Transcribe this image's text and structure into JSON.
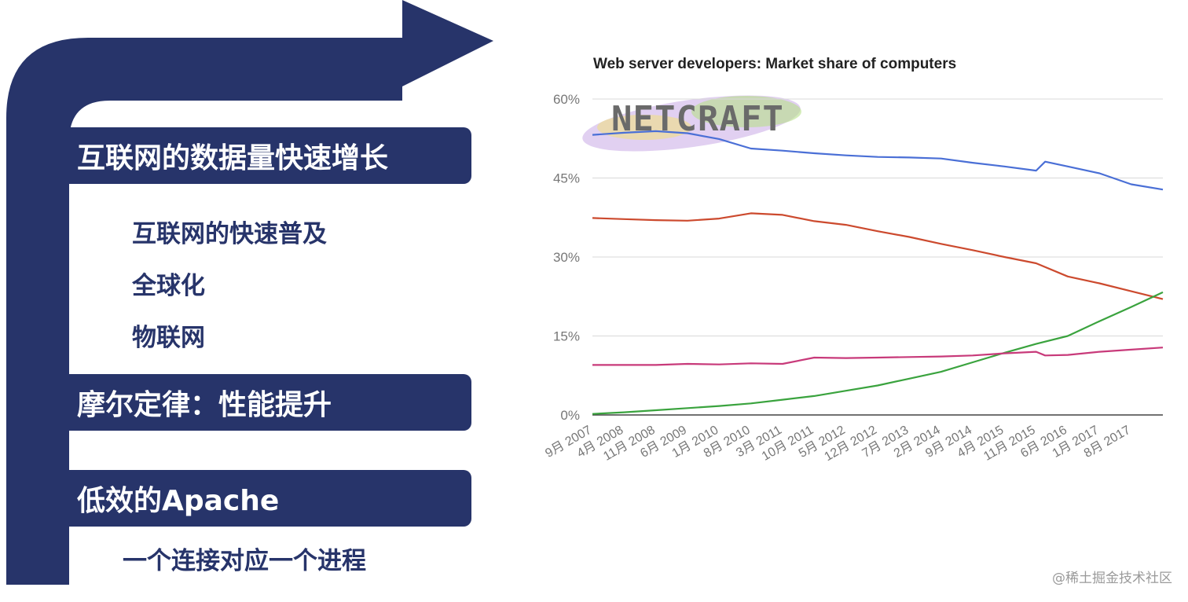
{
  "left_panel": {
    "section1": {
      "title": "互联网的数据量快速增长",
      "items": [
        "互联网的快速普及",
        "全球化",
        "物联网"
      ]
    },
    "section2": {
      "title": "摩尔定律：性能提升"
    },
    "section3": {
      "title": "低效的Apache",
      "items": [
        "一个连接对应一个进程"
      ]
    },
    "color": "#27346a"
  },
  "logo_text": "NETCRAFT",
  "watermark": "@稀土掘金技术社区",
  "chart_data": {
    "type": "line",
    "title": "Web server developers: Market share of computers",
    "xlabel": "",
    "ylabel": "",
    "ylim": [
      0,
      60
    ],
    "yticks": [
      "0%",
      "15%",
      "30%",
      "45%",
      "60%"
    ],
    "grid": true,
    "legend": "none",
    "x_tick_labels": [
      "9月 2007",
      "4月 2008",
      "11月 2008",
      "6月 2009",
      "1月 2010",
      "8月 2010",
      "3月 2011",
      "10月 2011",
      "5月 2012",
      "12月 2012",
      "7月 2013",
      "2月 2014",
      "9月 2014",
      "4月 2015",
      "11月 2015",
      "6月 2016",
      "1月 2017",
      "8月 2017"
    ],
    "x_end": "3月 2018",
    "series": [
      {
        "color": "#4a6fd6",
        "points": [
          [
            "9月 2007",
            53.2
          ],
          [
            "4月 2008",
            53.6
          ],
          [
            "11月 2008",
            53.9
          ],
          [
            "6月 2009",
            53.5
          ],
          [
            "1月 2010",
            52.4
          ],
          [
            "8月 2010",
            50.6
          ],
          [
            "3月 2011",
            50.2
          ],
          [
            "10月 2011",
            49.7
          ],
          [
            "5月 2012",
            49.3
          ],
          [
            "12月 2012",
            49.0
          ],
          [
            "7月 2013",
            48.9
          ],
          [
            "2月 2014",
            48.7
          ],
          [
            "9月 2014",
            47.9
          ],
          [
            "4月 2015",
            47.2
          ],
          [
            "11月 2015",
            46.4
          ],
          [
            "1月 2016",
            48.1
          ],
          [
            "6月 2016",
            47.2
          ],
          [
            "1月 2017",
            45.9
          ],
          [
            "8月 2017",
            43.8
          ],
          [
            "3月 2018",
            42.8
          ]
        ]
      },
      {
        "color": "#cc4a2e",
        "points": [
          [
            "9月 2007",
            37.4
          ],
          [
            "4月 2008",
            37.2
          ],
          [
            "11月 2008",
            37.0
          ],
          [
            "6月 2009",
            36.9
          ],
          [
            "1月 2010",
            37.3
          ],
          [
            "8月 2010",
            38.3
          ],
          [
            "3月 2011",
            38.0
          ],
          [
            "10月 2011",
            36.8
          ],
          [
            "5月 2012",
            36.1
          ],
          [
            "12月 2012",
            34.9
          ],
          [
            "7月 2013",
            33.8
          ],
          [
            "2月 2014",
            32.5
          ],
          [
            "9月 2014",
            31.3
          ],
          [
            "4月 2015",
            30.0
          ],
          [
            "11月 2015",
            28.8
          ],
          [
            "6月 2016",
            26.3
          ],
          [
            "1月 2017",
            25.0
          ],
          [
            "8月 2017",
            23.5
          ],
          [
            "3月 2018",
            22.0
          ]
        ]
      },
      {
        "color": "#3aa33e",
        "points": [
          [
            "9月 2007",
            0.2
          ],
          [
            "4月 2008",
            0.5
          ],
          [
            "11月 2008",
            0.9
          ],
          [
            "6月 2009",
            1.3
          ],
          [
            "1月 2010",
            1.7
          ],
          [
            "8月 2010",
            2.2
          ],
          [
            "3月 2011",
            2.9
          ],
          [
            "10月 2011",
            3.6
          ],
          [
            "5月 2012",
            4.6
          ],
          [
            "12月 2012",
            5.6
          ],
          [
            "7月 2013",
            6.9
          ],
          [
            "2月 2014",
            8.2
          ],
          [
            "9月 2014",
            10.0
          ],
          [
            "4月 2015",
            11.8
          ],
          [
            "11月 2015",
            13.5
          ],
          [
            "6月 2016",
            15.0
          ],
          [
            "1月 2017",
            17.8
          ],
          [
            "8月 2017",
            20.5
          ],
          [
            "3月 2018",
            23.3
          ]
        ]
      },
      {
        "color": "#c83a7a",
        "points": [
          [
            "9月 2007",
            9.5
          ],
          [
            "4月 2008",
            9.5
          ],
          [
            "11月 2008",
            9.5
          ],
          [
            "6月 2009",
            9.7
          ],
          [
            "1月 2010",
            9.6
          ],
          [
            "8月 2010",
            9.8
          ],
          [
            "3月 2011",
            9.7
          ],
          [
            "10月 2011",
            10.9
          ],
          [
            "5月 2012",
            10.8
          ],
          [
            "12月 2012",
            10.9
          ],
          [
            "7月 2013",
            11.0
          ],
          [
            "2月 2014",
            11.1
          ],
          [
            "9月 2014",
            11.3
          ],
          [
            "4月 2015",
            11.7
          ],
          [
            "11月 2015",
            12.0
          ],
          [
            "1月 2016",
            11.3
          ],
          [
            "6月 2016",
            11.4
          ],
          [
            "1月 2017",
            12.0
          ],
          [
            "8月 2017",
            12.4
          ],
          [
            "3月 2018",
            12.8
          ]
        ]
      }
    ]
  }
}
